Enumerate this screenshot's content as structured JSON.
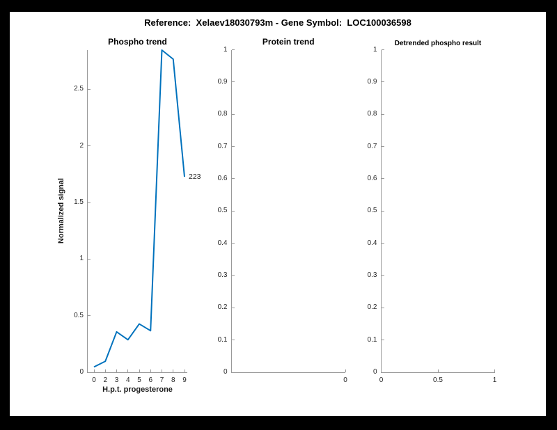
{
  "figure": {
    "title": "Reference:  Xelaev18030793m - Gene Symbol:  LOC100036598",
    "background": "#ffffff",
    "frame_color": "#000000"
  },
  "colors": {
    "line": "#0072BD",
    "axis": "#999999",
    "tick_label": "#262626",
    "text": "#1a1a1a"
  },
  "chart_data": [
    {
      "type": "line",
      "title": "Phospho trend",
      "xlabel": "H.p.t. progesterone",
      "ylabel": "Normalized signal",
      "x_ticks": [
        {
          "pos": 0.0,
          "label": "0"
        },
        {
          "pos": 0.125,
          "label": "2"
        },
        {
          "pos": 0.25,
          "label": "3"
        },
        {
          "pos": 0.375,
          "label": "4"
        },
        {
          "pos": 0.5,
          "label": "5"
        },
        {
          "pos": 0.625,
          "label": "6"
        },
        {
          "pos": 0.75,
          "label": "7"
        },
        {
          "pos": 0.875,
          "label": "8"
        },
        {
          "pos": 1.0,
          "label": "9"
        }
      ],
      "values": [
        0.05,
        0.1,
        0.36,
        0.29,
        0.43,
        0.37,
        2.85,
        2.77,
        1.73
      ],
      "y_ticks": [
        {
          "value": 0,
          "label": "0"
        },
        {
          "value": 0.5,
          "label": "0.5"
        },
        {
          "value": 1,
          "label": "1"
        },
        {
          "value": 1.5,
          "label": "1.5"
        },
        {
          "value": 2,
          "label": "2"
        },
        {
          "value": 2.5,
          "label": "2.5"
        }
      ],
      "ylim": [
        0,
        2.85
      ],
      "end_label": "223",
      "line_color": "#0072BD",
      "grid": false,
      "legend": null
    },
    {
      "type": "line",
      "title": "Protein trend",
      "xlabel": "",
      "ylabel": "",
      "x_ticks": [
        {
          "pos": 1.0,
          "label": "0"
        }
      ],
      "values": [],
      "y_ticks": [
        {
          "value": 0,
          "label": "0"
        },
        {
          "value": 0.1,
          "label": "0.1"
        },
        {
          "value": 0.2,
          "label": "0.2"
        },
        {
          "value": 0.3,
          "label": "0.3"
        },
        {
          "value": 0.4,
          "label": "0.4"
        },
        {
          "value": 0.5,
          "label": "0.5"
        },
        {
          "value": 0.6,
          "label": "0.6"
        },
        {
          "value": 0.7,
          "label": "0.7"
        },
        {
          "value": 0.8,
          "label": "0.8"
        },
        {
          "value": 0.9,
          "label": "0.9"
        },
        {
          "value": 1,
          "label": "1"
        }
      ],
      "ylim": [
        0,
        1
      ],
      "end_label": null,
      "line_color": "#0072BD",
      "grid": false,
      "legend": null
    },
    {
      "type": "line",
      "title": "Detrended phospho result",
      "xlabel": "",
      "ylabel": "",
      "x_ticks": [
        {
          "pos": 0.0,
          "label": "0"
        },
        {
          "pos": 0.5,
          "label": "0.5"
        },
        {
          "pos": 1.0,
          "label": "1"
        }
      ],
      "values": [],
      "y_ticks": [
        {
          "value": 0,
          "label": "0"
        },
        {
          "value": 0.1,
          "label": "0.1"
        },
        {
          "value": 0.2,
          "label": "0.2"
        },
        {
          "value": 0.3,
          "label": "0.3"
        },
        {
          "value": 0.4,
          "label": "0.4"
        },
        {
          "value": 0.5,
          "label": "0.5"
        },
        {
          "value": 0.6,
          "label": "0.6"
        },
        {
          "value": 0.7,
          "label": "0.7"
        },
        {
          "value": 0.8,
          "label": "0.8"
        },
        {
          "value": 0.9,
          "label": "0.9"
        },
        {
          "value": 1,
          "label": "1"
        }
      ],
      "ylim": [
        0,
        1
      ],
      "end_label": null,
      "line_color": "#0072BD",
      "grid": false,
      "legend": null
    }
  ]
}
